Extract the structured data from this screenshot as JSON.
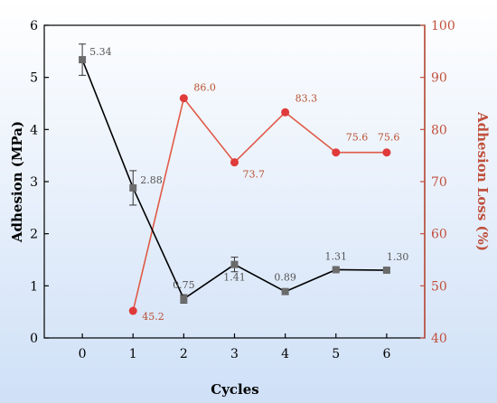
{
  "chart_data": {
    "type": "line",
    "xlabel": "Cycles",
    "ylabel_left": "Adhesion (MPa)",
    "ylabel_right": "Adhesion Loss (%)",
    "x": [
      0,
      1,
      2,
      3,
      4,
      5,
      6
    ],
    "xlim": [
      -0.75,
      6.75
    ],
    "ylim_left": [
      0,
      6
    ],
    "ylim_right": [
      40,
      100
    ],
    "x_ticks": [
      "0",
      "1",
      "2",
      "3",
      "4",
      "5",
      "6"
    ],
    "y_left_ticks": [
      "0",
      "1",
      "2",
      "3",
      "4",
      "5",
      "6"
    ],
    "y_right_ticks": [
      "40",
      "50",
      "60",
      "70",
      "80",
      "90",
      "100"
    ],
    "grid": false,
    "series": [
      {
        "key": "adhesion",
        "axis": "left",
        "color": "#000000",
        "marker_color": "#6b6b6b",
        "marker": "square",
        "x": [
          0,
          1,
          2,
          3,
          4,
          5,
          6
        ],
        "values": [
          5.34,
          2.88,
          0.75,
          1.41,
          0.89,
          1.31,
          1.3
        ],
        "error": [
          0.3,
          0.33,
          0.08,
          0.14,
          0.05,
          0.03,
          0.03
        ],
        "labels": [
          "5.34",
          "2.88",
          "0.75",
          "1.41",
          "0.89",
          "1.31",
          "1.30"
        ]
      },
      {
        "key": "loss",
        "axis": "right",
        "color": "#e05a47",
        "marker_color": "#e03a3a",
        "marker": "circle",
        "x": [
          1,
          2,
          3,
          4,
          5,
          6
        ],
        "values": [
          45.2,
          86.0,
          73.7,
          83.3,
          75.6,
          75.6
        ],
        "labels": [
          "45.2",
          "86.0",
          "73.7",
          "83.3",
          "75.6",
          "75.6"
        ]
      }
    ],
    "colors": {
      "left_axis": "#000000",
      "right_axis": "#c0503c",
      "adhesion_label": "#555555",
      "loss_label": "#b85030",
      "background_top": "#ffffff",
      "background_bottom": "#cfe0f7"
    }
  }
}
